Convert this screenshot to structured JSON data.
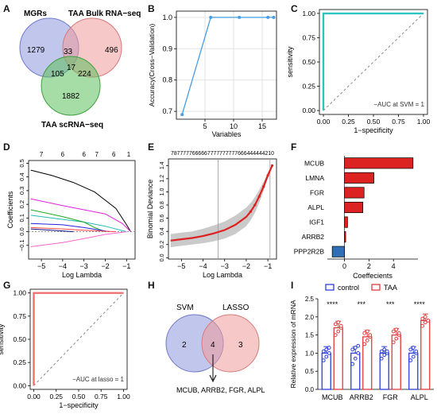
{
  "panel_letters": [
    "A",
    "B",
    "C",
    "D",
    "E",
    "F",
    "G",
    "H",
    "I"
  ],
  "colors": {
    "venn_mgrs": "#8e98dc",
    "venn_bulk": "#ef9a9a",
    "venn_sc": "#5cbf5c",
    "rfe_line": "#4a9de0",
    "roc_svm": "#2ec4c4",
    "roc_lasso": "#ef7070",
    "coef_pos": "#dd2222",
    "coef_neg": "#2f6fb5",
    "dev_curve": "#dd2222",
    "control": "#2b3fd9",
    "taa": "#e23a3a"
  },
  "panel_a": {
    "sets": [
      "MGRs",
      "TAA Bulk RNA−seq",
      "TAA scRNA−seq"
    ],
    "counts": {
      "only_mgrs": "1279",
      "only_bulk": "496",
      "only_sc": "1882",
      "mgrs_bulk": "33",
      "mgrs_sc": "105",
      "bulk_sc": "224",
      "all": "17"
    }
  },
  "chart_data": [
    {
      "panel": "B",
      "type": "line",
      "x": [
        1,
        6,
        11,
        16,
        17
      ],
      "y": [
        0.69,
        1.0,
        1.0,
        1.0,
        1.0
      ],
      "xlabel": "Variables",
      "ylabel": "Accuracy(Cross−Validation)",
      "xlim": [
        0,
        17.5
      ],
      "ylim": [
        0.675,
        1.02
      ],
      "xticks": [
        "5",
        "10",
        "15"
      ],
      "yticks": [
        "0.7",
        "0.8",
        "0.9",
        "1.0"
      ],
      "grid": true
    },
    {
      "panel": "C",
      "type": "line",
      "x": [
        0,
        0,
        1
      ],
      "y": [
        0,
        1,
        1
      ],
      "xlabel": "1−specificity",
      "ylabel": "sensitivity",
      "xticks": [
        "0.00",
        "0.25",
        "0.50",
        "0.75",
        "1.00"
      ],
      "yticks": [
        "0.00",
        "0.25",
        "0.50",
        "0.75",
        "1.00"
      ],
      "legend": "−AUC at SVM = 1",
      "legend_position": "bottom-right"
    },
    {
      "panel": "D",
      "type": "line",
      "xlabel": "Log Lambda",
      "ylabel": "Coefficients",
      "xlim": [
        -5.6,
        -0.6
      ],
      "ylim": [
        -0.2,
        0.52
      ],
      "xticks": [
        "−5",
        "−4",
        "−3",
        "−2",
        "−1"
      ],
      "yticks": [
        "−0.1",
        "0.0",
        "0.1",
        "0.2",
        "0.3",
        "0.4",
        "0.5"
      ],
      "top_ticks": [
        "7",
        "6",
        "6",
        "7",
        "6",
        "1"
      ],
      "top_tick_x": [
        -5,
        -4,
        -3,
        -2.4,
        -1.6,
        -0.9
      ],
      "series": [
        {
          "color": "#000000",
          "x": [
            -5.5,
            -4.5,
            -3.5,
            -2.5,
            -1.5,
            -1.0,
            -0.8
          ],
          "y": [
            0.45,
            0.41,
            0.36,
            0.29,
            0.17,
            0.05,
            0.0
          ]
        },
        {
          "color": "#e020e0",
          "x": [
            -5.5,
            -4,
            -3,
            -2,
            -1.2,
            -0.8
          ],
          "y": [
            0.24,
            0.19,
            0.16,
            0.13,
            0.06,
            0.0
          ]
        },
        {
          "color": "#22bbbb",
          "x": [
            -5.5,
            -4,
            -3,
            -2,
            -1.0
          ],
          "y": [
            0.12,
            0.09,
            0.07,
            0.04,
            0.0
          ]
        },
        {
          "color": "#22aa22",
          "x": [
            -5.5,
            -4,
            -3,
            -2.5,
            -2.0
          ],
          "y": [
            0.16,
            0.11,
            0.07,
            0.03,
            0.0
          ]
        },
        {
          "color": "#2222dd",
          "x": [
            -5.5,
            -4,
            -3,
            -2.2,
            -1.8
          ],
          "y": [
            0.06,
            0.05,
            0.03,
            0.01,
            0.0
          ]
        },
        {
          "color": "#ff4444",
          "x": [
            -5.5,
            -4,
            -3,
            -1.5
          ],
          "y": [
            0.03,
            0.02,
            0.01,
            0.0
          ]
        },
        {
          "color": "#111188",
          "x": [
            -5.5,
            -4.5,
            -3.5
          ],
          "y": [
            0.02,
            0.01,
            0.0
          ]
        },
        {
          "color": "#ff66cc",
          "x": [
            -5.5,
            -4,
            -3,
            -2,
            -1.0
          ],
          "y": [
            -0.11,
            -0.08,
            -0.05,
            -0.02,
            0.0
          ]
        }
      ]
    },
    {
      "panel": "E",
      "type": "line",
      "xlabel": "Log Lambda",
      "ylabel": "Binomial Deviance",
      "xlim": [
        -5.6,
        -0.6
      ],
      "ylim": [
        -0.02,
        1.5
      ],
      "xticks": [
        "−5",
        "−4",
        "−3",
        "−2",
        "−1"
      ],
      "yticks": [
        "0.0",
        "0.2",
        "0.4",
        "0.6",
        "0.8",
        "1.0",
        "1.2",
        "1.4"
      ],
      "top_label": "7877777666667777777777666444444210",
      "vlines": [
        -3.3,
        -0.9
      ],
      "x": [
        -5.5,
        -5,
        -4.5,
        -4,
        -3.5,
        -3,
        -2.5,
        -2,
        -1.8,
        -1.6,
        -1.4,
        -1.2,
        -1.0,
        -0.8
      ],
      "y": [
        0.26,
        0.28,
        0.3,
        0.33,
        0.37,
        0.42,
        0.5,
        0.62,
        0.7,
        0.8,
        0.93,
        1.08,
        1.25,
        1.4
      ],
      "band_halfwidth": [
        0.1,
        0.1,
        0.1,
        0.11,
        0.12,
        0.13,
        0.14,
        0.14,
        0.13,
        0.12,
        0.1,
        0.07,
        0.04,
        0.02
      ]
    },
    {
      "panel": "F",
      "type": "bar",
      "categories": [
        "MCUB",
        "LMNA",
        "FGR",
        "ALPL",
        "IGF1",
        "ARRB2",
        "PPP2R2B"
      ],
      "values": [
        5.6,
        2.4,
        1.6,
        1.5,
        0.25,
        0.05,
        -1.0
      ],
      "xlabel": "Coeffecients",
      "xlim": [
        -1.4,
        6.0
      ],
      "xticks": [
        "0",
        "2",
        "4"
      ]
    },
    {
      "panel": "G",
      "type": "line",
      "x": [
        0,
        0,
        1
      ],
      "y": [
        0,
        1,
        1
      ],
      "xlabel": "1−specificity",
      "ylabel": "sensitivity",
      "xticks": [
        "0.00",
        "0.25",
        "0.50",
        "0.75",
        "1.00"
      ],
      "yticks": [
        "0.00",
        "0.25",
        "0.50",
        "0.75",
        "1.00"
      ],
      "legend": "−AUC at lasso = 1",
      "legend_position": "bottom-right"
    },
    {
      "panel": "I",
      "type": "bar",
      "categories": [
        "MCUB",
        "ARRB2",
        "FGR",
        "ALPL"
      ],
      "ylabel": "Relative expression of mRNA",
      "ylim": [
        0,
        2.5
      ],
      "yticks": [
        "0.0",
        "0.5",
        "1.0",
        "1.5",
        "2.0",
        "2.5"
      ],
      "legend_position": "top",
      "significance": [
        "****",
        "***",
        "***",
        "****"
      ],
      "series": [
        {
          "name": "control",
          "values": [
            1.0,
            1.0,
            1.0,
            1.0
          ],
          "points": [
            [
              0.8,
              0.9,
              1.0,
              1.05,
              1.1,
              1.15
            ],
            [
              0.7,
              0.85,
              1.0,
              1.1,
              1.15,
              1.2
            ],
            [
              0.85,
              0.95,
              1.0,
              1.05,
              1.1,
              1.05
            ],
            [
              0.8,
              0.9,
              1.0,
              1.1,
              1.15,
              1.05
            ]
          ]
        },
        {
          "name": "TAA",
          "values": [
            1.7,
            1.45,
            1.5,
            1.9
          ],
          "points": [
            [
              1.5,
              1.6,
              1.7,
              1.8,
              1.85,
              1.75
            ],
            [
              1.25,
              1.35,
              1.45,
              1.55,
              1.6,
              1.5
            ],
            [
              1.3,
              1.4,
              1.5,
              1.6,
              1.65,
              1.55
            ],
            [
              1.75,
              1.85,
              1.9,
              1.95,
              2.0,
              1.9
            ]
          ]
        }
      ]
    }
  ],
  "panel_h": {
    "sets": [
      "SVM",
      "LASSO"
    ],
    "counts": {
      "only_svm": "2",
      "both": "4",
      "only_lasso": "3"
    },
    "genes": "MCUB, ARRB2, FGR, ALPL"
  }
}
